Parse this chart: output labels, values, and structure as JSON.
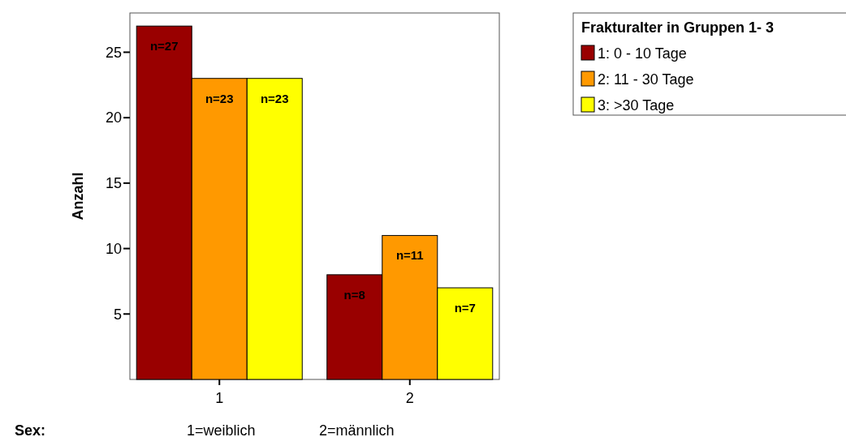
{
  "chart_data": {
    "type": "bar",
    "ylabel": "Anzahl",
    "legend_title": "Frakturalter in Gruppen 1- 3",
    "categories": [
      "1",
      "2"
    ],
    "series": [
      {
        "name": "1: 0 - 10 Tage",
        "color": "#990000",
        "values": [
          27,
          8
        ],
        "value_labels": [
          "n=27",
          "n=8"
        ]
      },
      {
        "name": "2: 11 - 30 Tage",
        "color": "#ff9900",
        "values": [
          23,
          11
        ],
        "value_labels": [
          "n=23",
          "n=11"
        ]
      },
      {
        "name": "3: >30 Tage",
        "color": "#ffff00",
        "values": [
          23,
          7
        ],
        "value_labels": [
          "n=23",
          "n=7"
        ]
      }
    ],
    "ylim": [
      0,
      28
    ],
    "yticks": [
      5,
      10,
      15,
      20,
      25
    ],
    "grid": false,
    "legend": "right",
    "annotations": [
      "Sex:",
      "1=weiblich",
      "2=männlich"
    ]
  }
}
